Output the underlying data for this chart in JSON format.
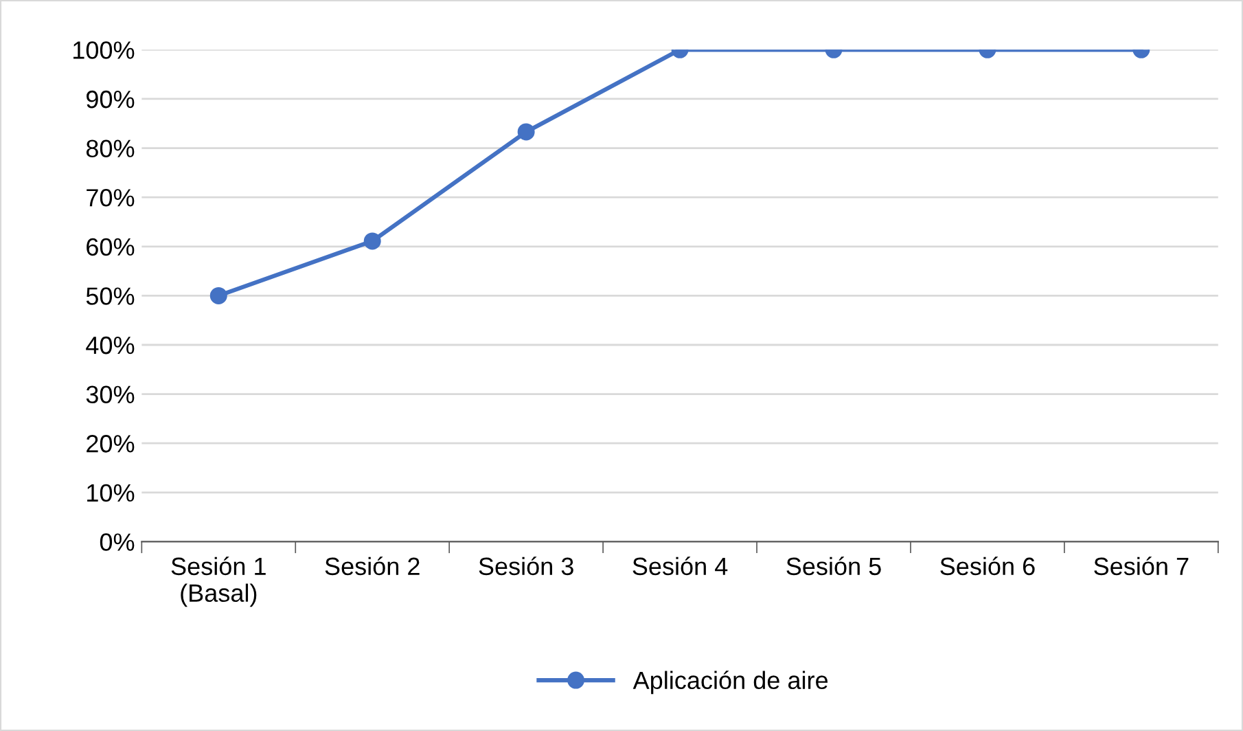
{
  "chart_data": {
    "type": "line",
    "categories": [
      "Sesión 1\n(Basal)",
      "Sesión 2",
      "Sesión 3",
      "Sesión 4",
      "Sesión 5",
      "Sesión 6",
      "Sesión 7"
    ],
    "series": [
      {
        "name": "Aplicación de aire",
        "color": "#4472c4",
        "values": [
          50,
          61.1,
          83.3,
          100,
          100,
          100,
          100
        ]
      }
    ],
    "ylim": [
      0,
      100
    ],
    "yticks": [
      {
        "value": 0,
        "label": "0%"
      },
      {
        "value": 10,
        "label": "10%"
      },
      {
        "value": 20,
        "label": "20%"
      },
      {
        "value": 30,
        "label": "30%"
      },
      {
        "value": 40,
        "label": "40%"
      },
      {
        "value": 50,
        "label": "50%"
      },
      {
        "value": 60,
        "label": "60%"
      },
      {
        "value": 70,
        "label": "70%"
      },
      {
        "value": 80,
        "label": "80%"
      },
      {
        "value": 90,
        "label": "90%"
      },
      {
        "value": 100,
        "label": "100%"
      }
    ],
    "grid": "y",
    "legend": "bottom",
    "marker": "circle",
    "line_style": "solid"
  }
}
